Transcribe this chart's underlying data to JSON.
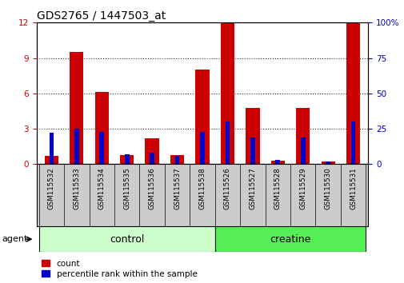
{
  "title": "GDS2765 / 1447503_at",
  "samples": [
    "GSM115532",
    "GSM115533",
    "GSM115534",
    "GSM115535",
    "GSM115536",
    "GSM115537",
    "GSM115538",
    "GSM115526",
    "GSM115527",
    "GSM115528",
    "GSM115529",
    "GSM115530",
    "GSM115531"
  ],
  "count_values": [
    0.7,
    9.5,
    6.1,
    0.8,
    2.2,
    0.8,
    8.0,
    12.0,
    4.8,
    0.3,
    4.8,
    0.2,
    12.0
  ],
  "percentile_values": [
    22,
    25,
    23,
    7,
    8,
    6,
    23,
    30,
    19,
    3,
    19,
    2,
    30
  ],
  "groups": [
    "control",
    "control",
    "control",
    "control",
    "control",
    "control",
    "control",
    "creatine",
    "creatine",
    "creatine",
    "creatine",
    "creatine",
    "creatine"
  ],
  "group_colors": {
    "control": "#ccffcc",
    "creatine": "#55ee55"
  },
  "bar_color_count": "#cc0000",
  "bar_color_percentile": "#0000cc",
  "ylim_left": [
    0,
    12
  ],
  "ylim_right": [
    0,
    100
  ],
  "yticks_left": [
    0,
    3,
    6,
    9,
    12
  ],
  "yticks_right": [
    0,
    25,
    50,
    75,
    100
  ],
  "ytick_labels_right": [
    "0",
    "25",
    "50",
    "75",
    "100%"
  ],
  "ylabel_left_color": "#cc0000",
  "ylabel_right_color": "#0000cc",
  "agent_label": "agent",
  "legend_count_label": "count",
  "legend_percentile_label": "percentile rank within the sample",
  "title_fontsize": 10,
  "tick_fontsize": 7.5,
  "sample_fontsize": 6.2,
  "group_fontsize": 9,
  "legend_fontsize": 7.5
}
